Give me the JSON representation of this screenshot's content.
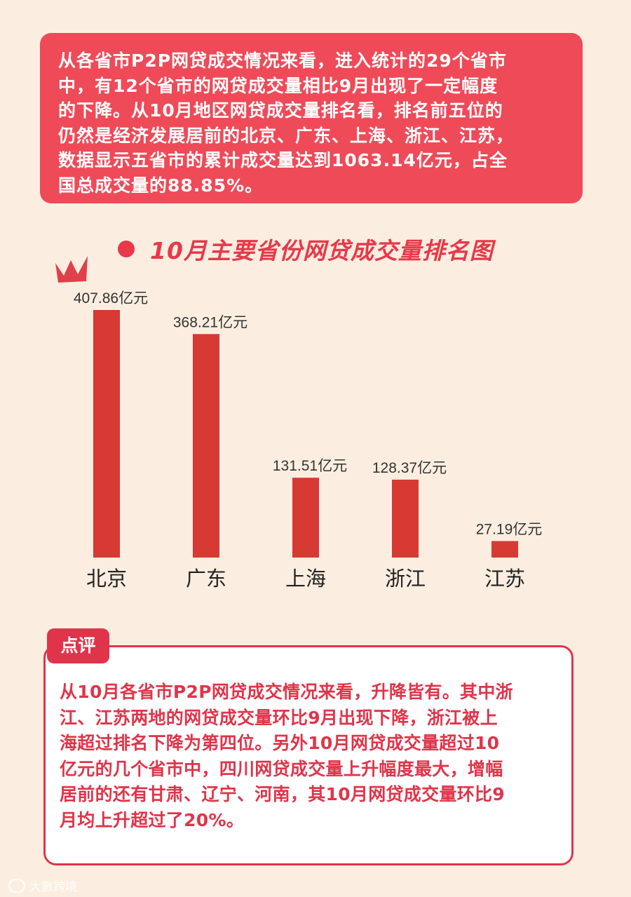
{
  "intro": {
    "text": "从各省市P2P网贷成交情况来看，进入统计的29个省市\n中，有12个省市的网贷成交量相比9月出现了一定幅度\n的下降。从10月地区网贷成交量排名看，排名前五位的\n仍然是经济发展居前的北京、广东、上海、浙江、江苏，\n数据显示五省市的累计成交量达到1063.14亿元，占全\n国总成交量的88.85%。"
  },
  "chart_title": "10月主要省份网贷成交量排名图",
  "chart_data": {
    "type": "bar",
    "title": "10月主要省份网贷成交量排名图",
    "categories": [
      "北京",
      "广东",
      "上海",
      "浙江",
      "江苏"
    ],
    "values": [
      407.86,
      368.21,
      131.51,
      128.37,
      27.19
    ],
    "value_labels": [
      "407.86亿元",
      "368.21亿元",
      "131.51亿元",
      "128.37亿元",
      "27.19亿元"
    ],
    "unit": "亿元",
    "xlabel": "",
    "ylabel": "",
    "grid": false,
    "bar_color": "#d63a33",
    "crown_on": "北京"
  },
  "review": {
    "tag": "点评",
    "text": "从10月各省市P2P网贷成交情况来看，升降皆有。其中浙\n江、江苏两地的网贷成交量环比9月出现下降，浙江被上\n海超过排名下降为第四位。另外10月网贷成交量超过10\n亿元的几个省市中，四川网贷成交量上升幅度最大，增幅\n居前的还有甘肃、辽宁、河南，其10月网贷成交量环比9\n月均上升超过了20%。"
  },
  "watermark": "大數跨境",
  "colors": {
    "background": "#fbeee0",
    "accent": "#ef4a58",
    "bar": "#d63a33",
    "crown": "#e0404a"
  }
}
